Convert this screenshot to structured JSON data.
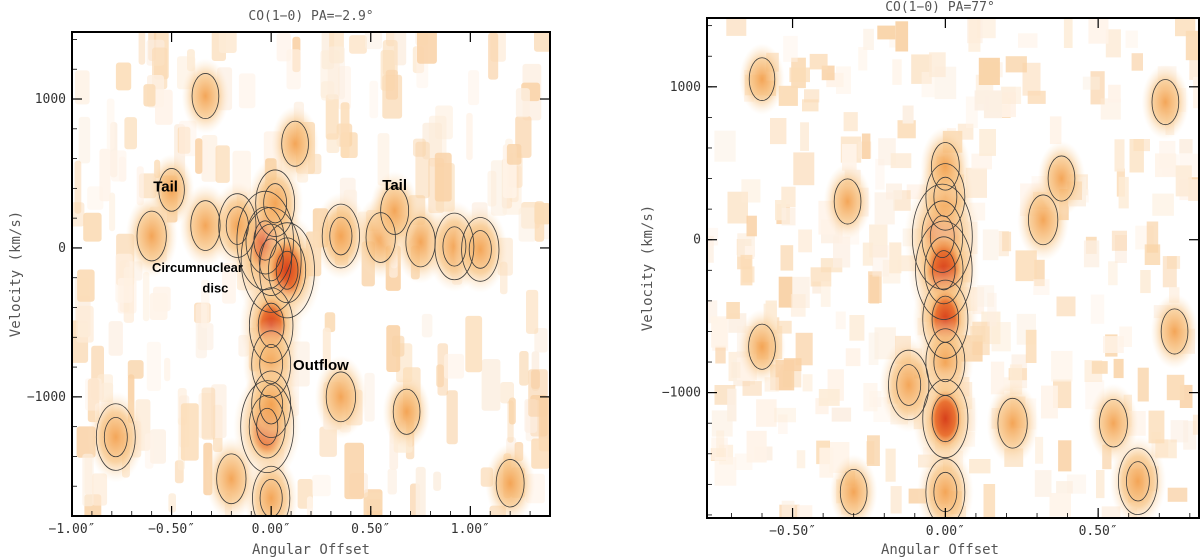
{
  "chart_data": [
    {
      "type": "heatmap",
      "title": "CO(1−0)     PA=−2.9°",
      "xlabel": "Angular Offset",
      "ylabel": "Velocity (km/s)",
      "xlim": [
        -1.0,
        1.4
      ],
      "ylim": [
        -1800,
        1450
      ],
      "x_ticks": [
        -1.0,
        -0.5,
        0.0,
        0.5,
        1.0
      ],
      "x_tick_labels": [
        "−1.00″",
        "−0.50″",
        "0.00″",
        "0.50″",
        "1.00″"
      ],
      "y_ticks": [
        1000,
        0,
        -1000
      ],
      "y_tick_labels": [
        "1000",
        "0",
        "−1000"
      ],
      "annotations": [
        {
          "text": "Tail",
          "x": -0.53,
          "y": 380
        },
        {
          "text": "Tail",
          "x": 0.62,
          "y": 390
        },
        {
          "text": "Circumnuclear",
          "x": -0.37,
          "y": -160
        },
        {
          "text": "disc",
          "x": -0.28,
          "y": -300
        },
        {
          "text": "Outflow",
          "x": 0.25,
          "y": -820
        }
      ],
      "components": [
        {
          "x": 0.0,
          "y": -80,
          "peak": 1.0
        },
        {
          "x": -0.03,
          "y": 50,
          "peak": 0.9
        },
        {
          "x": 0.08,
          "y": -150,
          "peak": 0.85
        },
        {
          "x": 0.02,
          "y": 300,
          "peak": 0.55
        },
        {
          "x": -0.17,
          "y": 150,
          "peak": 0.5
        },
        {
          "x": -0.33,
          "y": 150,
          "peak": 0.45
        },
        {
          "x": -0.6,
          "y": 80,
          "peak": 0.45
        },
        {
          "x": -0.5,
          "y": 390,
          "peak": 0.3
        },
        {
          "x": 0.35,
          "y": 80,
          "peak": 0.5
        },
        {
          "x": 0.55,
          "y": 70,
          "peak": 0.45
        },
        {
          "x": 0.75,
          "y": 40,
          "peak": 0.45
        },
        {
          "x": 0.92,
          "y": 10,
          "peak": 0.55
        },
        {
          "x": 1.05,
          "y": -10,
          "peak": 0.5
        },
        {
          "x": 0.62,
          "y": 250,
          "peak": 0.4
        },
        {
          "x": 0.0,
          "y": -520,
          "peak": 0.7
        },
        {
          "x": 0.0,
          "y": -780,
          "peak": 0.55
        },
        {
          "x": -0.02,
          "y": -1200,
          "peak": 0.8
        },
        {
          "x": 0.0,
          "y": -1050,
          "peak": 0.55
        },
        {
          "x": 0.0,
          "y": -1680,
          "peak": 0.5
        },
        {
          "x": -0.78,
          "y": -1270,
          "peak": 0.55
        },
        {
          "x": -0.2,
          "y": -1550,
          "peak": 0.45
        },
        {
          "x": 0.35,
          "y": -1000,
          "peak": 0.45
        },
        {
          "x": -0.33,
          "y": 1020,
          "peak": 0.35
        },
        {
          "x": 0.12,
          "y": 700,
          "peak": 0.35
        },
        {
          "x": 1.2,
          "y": -1580,
          "peak": 0.4
        },
        {
          "x": 0.68,
          "y": -1100,
          "peak": 0.35
        }
      ]
    },
    {
      "type": "heatmap",
      "title": "CO(1−0)    PA=77°",
      "xlabel": "Angular Offset",
      "ylabel": "Velocity (km/s)",
      "xlim": [
        -0.78,
        0.83
      ],
      "ylim": [
        -1820,
        1450
      ],
      "x_ticks": [
        -0.5,
        0.0,
        0.5
      ],
      "x_tick_labels": [
        "−0.50″",
        "0.00″",
        "0.50″"
      ],
      "y_ticks": [
        1000,
        0,
        -1000
      ],
      "y_tick_labels": [
        "1000",
        "0",
        "−1000"
      ],
      "annotations": [],
      "components": [
        {
          "x": -0.01,
          "y": 20,
          "peak": 1.0
        },
        {
          "x": -0.005,
          "y": -200,
          "peak": 0.9
        },
        {
          "x": 0.0,
          "y": 280,
          "peak": 0.55
        },
        {
          "x": 0.0,
          "y": 480,
          "peak": 0.4
        },
        {
          "x": 0.0,
          "y": -520,
          "peak": 0.75
        },
        {
          "x": 0.0,
          "y": -800,
          "peak": 0.55
        },
        {
          "x": 0.0,
          "y": -1170,
          "peak": 0.75
        },
        {
          "x": 0.0,
          "y": -1650,
          "peak": 0.55
        },
        {
          "x": -0.12,
          "y": -950,
          "peak": 0.6
        },
        {
          "x": -0.32,
          "y": 250,
          "peak": 0.35
        },
        {
          "x": 0.32,
          "y": 130,
          "peak": 0.45
        },
        {
          "x": 0.38,
          "y": 400,
          "peak": 0.35
        },
        {
          "x": 0.63,
          "y": -1580,
          "peak": 0.55
        },
        {
          "x": 0.72,
          "y": 900,
          "peak": 0.35
        },
        {
          "x": -0.6,
          "y": -700,
          "peak": 0.35
        },
        {
          "x": 0.55,
          "y": -1200,
          "peak": 0.4
        },
        {
          "x": 0.75,
          "y": -600,
          "peak": 0.35
        },
        {
          "x": 0.22,
          "y": -1200,
          "peak": 0.45
        },
        {
          "x": -0.6,
          "y": 1050,
          "peak": 0.3
        },
        {
          "x": -0.3,
          "y": -1650,
          "peak": 0.35
        }
      ]
    }
  ]
}
